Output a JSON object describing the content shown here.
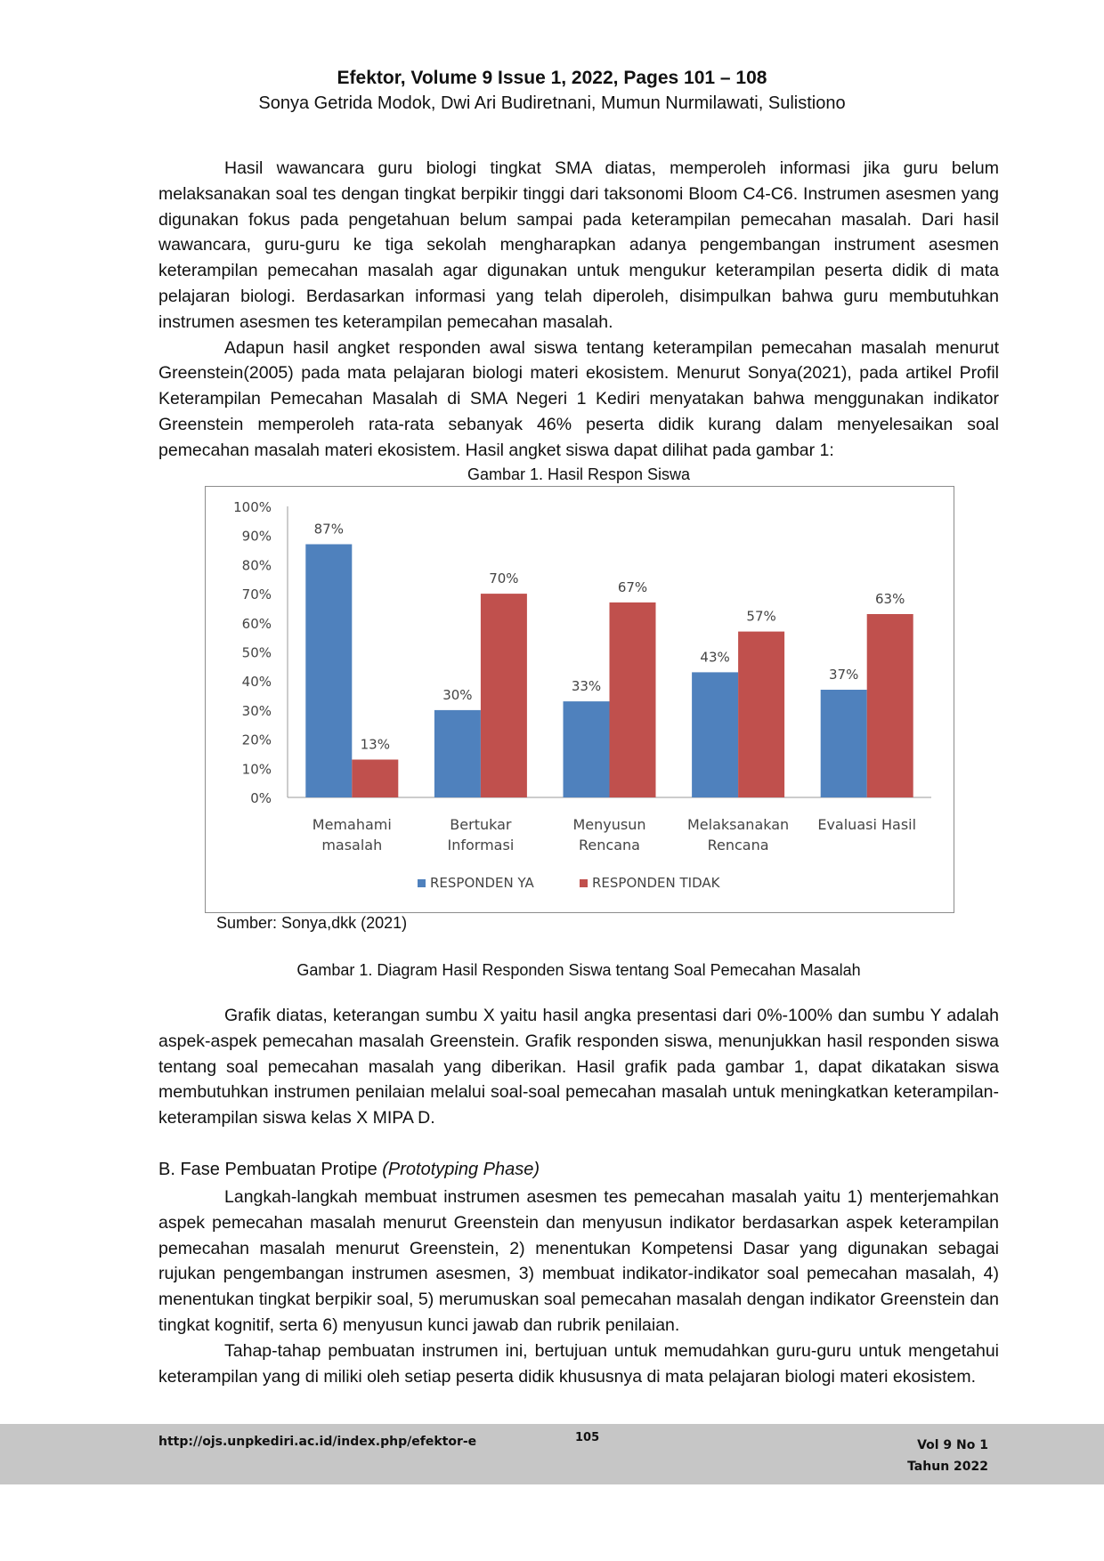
{
  "header": {
    "journal": "Efektor, Volume 9 Issue 1, 2022, Pages 101 – 108",
    "authors": "Sonya Getrida Modok, Dwi Ari Budiretnani, Mumun Nurmilawati, Sulistiono"
  },
  "paragraphs_top": [
    "Hasil wawancara guru biologi tingkat SMA diatas, memperoleh informasi jika guru belum melaksanakan soal tes dengan tingkat berpikir tinggi dari taksonomi Bloom C4-C6. Instrumen asesmen yang digunakan fokus pada pengetahuan belum sampai pada keterampilan pemecahan masalah. Dari hasil wawancara, guru-guru ke tiga sekolah mengharapkan adanya pengembangan instrument asesmen keterampilan pemecahan masalah agar digunakan untuk mengukur keterampilan peserta didik di mata pelajaran biologi. Berdasarkan informasi yang telah diperoleh, disimpulkan bahwa guru membutuhkan instrumen asesmen tes keterampilan pemecahan masalah.",
    "Adapun hasil angket responden awal siswa tentang keterampilan pemecahan masalah menurut Greenstein(2005) pada mata pelajaran biologi materi ekosistem. Menurut Sonya(2021), pada artikel Profil Keterampilan Pemecahan Masalah di SMA Negeri 1 Kediri menyatakan bahwa menggunakan indikator Greenstein memperoleh rata-rata sebanyak 46% peserta didik kurang dalam menyelesaikan soal pemecahan masalah materi ekosistem. Hasil angket siswa dapat dilihat pada gambar 1:"
  ],
  "figure_title": "Gambar 1. Hasil Respon Siswa",
  "source": "Sumber: Sonya,dkk (2021)",
  "caption": "Gambar 1. Diagram Hasil Responden Siswa tentang Soal Pemecahan Masalah",
  "paragraphs_mid": [
    "Grafik diatas, keterangan sumbu X yaitu hasil angka presentasi dari 0%-100% dan sumbu Y adalah aspek-aspek pemecahan masalah Greenstein. Grafik responden siswa, menunjukkan hasil responden siswa tentang soal pemecahan masalah yang diberikan. Hasil grafik pada gambar 1, dapat dikatakan siswa membutuhkan instrumen penilaian melalui soal-soal pemecahan masalah untuk meningkatkan keterampilan-keterampilan siswa kelas X MIPA D."
  ],
  "section": {
    "label": "B. Fase Pembuatan Protipe",
    "label_italic": "(Prototyping Phase)"
  },
  "paragraphs_bottom": [
    "Langkah-langkah membuat instrumen asesmen tes pemecahan masalah yaitu 1) menterjemahkan aspek pemecahan masalah menurut Greenstein dan menyusun indikator berdasarkan aspek keterampilan pemecahan masalah menurut Greenstein, 2) menentukan Kompetensi Dasar yang digunakan sebagai rujukan pengembangan instrumen asesmen, 3) membuat indikator-indikator soal pemecahan masalah, 4) menentukan tingkat berpikir soal, 5) merumuskan soal pemecahan masalah dengan indikator Greenstein dan tingkat kognitif, serta 6) menyusun kunci jawab dan rubrik penilaian.",
    "Tahap-tahap pembuatan instrumen ini, bertujuan untuk memudahkan guru-guru untuk mengetahui keterampilan yang di miliki oleh setiap peserta didik khususnya di mata pelajaran biologi materi ekosistem."
  ],
  "footer": {
    "url": "http://ojs.unpkediri.ac.id/index.php/efektor-e",
    "page": "105",
    "volume": "Vol 9 No 1",
    "year": "Tahun 2022"
  },
  "chart_data": {
    "type": "bar",
    "categories": [
      [
        "Memahami",
        "masalah"
      ],
      [
        "Bertukar",
        "Informasi"
      ],
      [
        "Menyusun",
        "Rencana"
      ],
      [
        "Melaksanakan",
        "Rencana"
      ],
      [
        "Evaluasi Hasil"
      ]
    ],
    "series": [
      {
        "name": "RESPONDEN YA",
        "color": "#4f81bd",
        "values": [
          87,
          30,
          33,
          43,
          37
        ],
        "labels": [
          "87%",
          "30%",
          "33%",
          "43%",
          "37%"
        ]
      },
      {
        "name": "RESPONDEN TIDAK",
        "color": "#c0504d",
        "values": [
          13,
          70,
          67,
          57,
          63
        ],
        "labels": [
          "13%",
          "70%",
          "67%",
          "57%",
          "63%"
        ]
      }
    ],
    "yticks": [
      "0%",
      "10%",
      "20%",
      "30%",
      "40%",
      "50%",
      "60%",
      "70%",
      "80%",
      "90%",
      "100%"
    ],
    "ylim": [
      0,
      100
    ],
    "legend": "bottom"
  }
}
